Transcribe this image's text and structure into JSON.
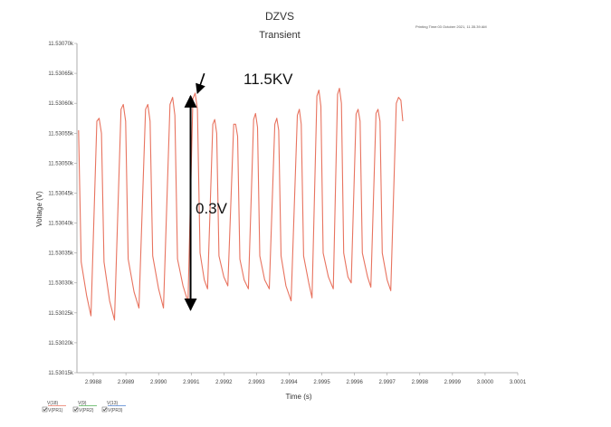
{
  "chart_data": {
    "type": "line",
    "title": "DZVS",
    "subtitle": "Transient",
    "printing_time": "Printing Time:03 October 2021, 11.35.39 AM",
    "xlabel": "Time (s)",
    "ylabel": "Voltage (V)",
    "xlim": [
      2.99875,
      3.0001
    ],
    "ylim": [
      11.53015,
      11.5307
    ],
    "x_tick_labels": [
      "2.9988",
      "2.9989",
      "2.9990",
      "2.9991",
      "2.9992",
      "2.9993",
      "2.9994",
      "2.9995",
      "2.9996",
      "2.9997",
      "2.9998",
      "2.9999",
      "3.0000",
      "3.0001"
    ],
    "y_tick_labels": [
      "11.53070k",
      "11.53065k",
      "11.53060k",
      "11.53055k",
      "11.53050k",
      "11.53045k",
      "11.53040k",
      "11.53035k",
      "11.53030k",
      "11.53025k",
      "11.53020k",
      "11.53015k"
    ],
    "line_color": "#e8735f",
    "grid": false,
    "series": [
      {
        "points": [
          [
            2.998755,
            11.530555
          ],
          [
            2.998763,
            11.530335
          ],
          [
            2.99878,
            11.530278
          ],
          [
            2.998793,
            11.530245
          ],
          [
            2.998811,
            11.53057
          ],
          [
            2.998818,
            11.530575
          ],
          [
            2.998825,
            11.53055
          ],
          [
            2.998833,
            11.530335
          ],
          [
            2.99885,
            11.53027
          ],
          [
            2.998865,
            11.530238
          ],
          [
            2.998885,
            11.53059
          ],
          [
            2.998892,
            11.530598
          ],
          [
            2.998899,
            11.53057
          ],
          [
            2.998907,
            11.53034
          ],
          [
            2.998925,
            11.530285
          ],
          [
            2.99894,
            11.530258
          ],
          [
            2.99896,
            11.53059
          ],
          [
            2.998967,
            11.530598
          ],
          [
            2.998974,
            11.53057
          ],
          [
            2.998982,
            11.530345
          ],
          [
            2.999,
            11.53029
          ],
          [
            2.999015,
            11.530258
          ],
          [
            2.999035,
            11.530598
          ],
          [
            2.999043,
            11.53061
          ],
          [
            2.99905,
            11.53058
          ],
          [
            2.999058,
            11.53034
          ],
          [
            2.999075,
            11.530295
          ],
          [
            2.99909,
            11.530268
          ],
          [
            2.999105,
            11.530608
          ],
          [
            2.999112,
            11.530617
          ],
          [
            2.999119,
            11.53059
          ],
          [
            2.999127,
            11.53035
          ],
          [
            2.99914,
            11.530305
          ],
          [
            2.99915,
            11.53029
          ],
          [
            2.999166,
            11.530565
          ],
          [
            2.999172,
            11.530573
          ],
          [
            2.999178,
            11.53055
          ],
          [
            2.999185,
            11.530345
          ],
          [
            2.9992,
            11.53031
          ],
          [
            2.999212,
            11.530295
          ],
          [
            2.99923,
            11.530565
          ],
          [
            2.999236,
            11.530565
          ],
          [
            2.999242,
            11.530545
          ],
          [
            2.999249,
            11.53034
          ],
          [
            2.999262,
            11.530305
          ],
          [
            2.999275,
            11.53029
          ],
          [
            2.999291,
            11.530573
          ],
          [
            2.999297,
            11.530583
          ],
          [
            2.999303,
            11.53056
          ],
          [
            2.99931,
            11.530345
          ],
          [
            2.999325,
            11.530305
          ],
          [
            2.999339,
            11.53029
          ],
          [
            2.999356,
            11.530565
          ],
          [
            2.999362,
            11.530575
          ],
          [
            2.999368,
            11.530555
          ],
          [
            2.999375,
            11.530345
          ],
          [
            2.99939,
            11.530295
          ],
          [
            2.999406,
            11.53027
          ],
          [
            2.999425,
            11.53058
          ],
          [
            2.999431,
            11.53059
          ],
          [
            2.999437,
            11.530565
          ],
          [
            2.999444,
            11.530345
          ],
          [
            2.99946,
            11.5303
          ],
          [
            2.99947,
            11.530275
          ],
          [
            2.999485,
            11.530612
          ],
          [
            2.999491,
            11.530622
          ],
          [
            2.999497,
            11.530595
          ],
          [
            2.999504,
            11.53035
          ],
          [
            2.99952,
            11.53031
          ],
          [
            2.999535,
            11.53029
          ],
          [
            2.999548,
            11.530615
          ],
          [
            2.999554,
            11.530625
          ],
          [
            2.99956,
            11.5306
          ],
          [
            2.999567,
            11.53035
          ],
          [
            2.99958,
            11.53031
          ],
          [
            2.99959,
            11.5303
          ],
          [
            2.999605,
            11.530582
          ],
          [
            2.999611,
            11.53059
          ],
          [
            2.999617,
            11.53057
          ],
          [
            2.999624,
            11.53035
          ],
          [
            2.99964,
            11.53031
          ],
          [
            2.99965,
            11.530293
          ],
          [
            2.999666,
            11.530583
          ],
          [
            2.999672,
            11.53059
          ],
          [
            2.999678,
            11.53057
          ],
          [
            2.999685,
            11.53035
          ],
          [
            2.9997,
            11.530305
          ],
          [
            2.999711,
            11.530287
          ],
          [
            2.999728,
            11.5306
          ],
          [
            2.999735,
            11.53061
          ],
          [
            2.999742,
            11.530605
          ],
          [
            2.999748,
            11.53057
          ]
        ]
      }
    ],
    "annotations": {
      "peak_label": "11.5KV",
      "swing_label": "0.3V",
      "peak_arrow": {
        "from": [
          2.99914,
          11.53065
        ],
        "to": [
          2.999119,
          11.530617
        ]
      },
      "swing_arrow": {
        "x": 2.999098,
        "y_top": 11.530612,
        "y_bottom": 11.530255
      }
    },
    "legend": [
      {
        "variable": "V(18)",
        "probe": "V(PR1)",
        "color": "#e8735f"
      },
      {
        "variable": "V(9)",
        "probe": "V(PR2)",
        "color": "#4caf50"
      },
      {
        "variable": "V(13)",
        "probe": "V(PR3)",
        "color": "#4a7fd0"
      }
    ]
  }
}
